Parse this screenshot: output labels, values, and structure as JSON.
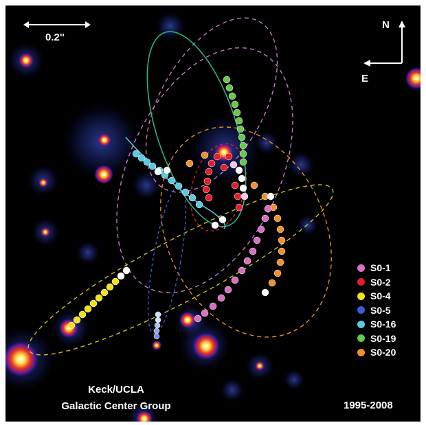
{
  "image": {
    "description_labels": {
      "scale_bar": "0.2''",
      "north": "N",
      "east": "E",
      "credit_line1": "Keck/UCLA",
      "credit_line2": "Galactic Center Group",
      "years": "1995-2008"
    }
  },
  "legend": [
    {
      "label": "S0-1",
      "color": "#d96fc3"
    },
    {
      "label": "S0-2",
      "color": "#e0202a"
    },
    {
      "label": "S0-4",
      "color": "#f2e21a"
    },
    {
      "label": "S0-5",
      "color": "#3f5bd9"
    },
    {
      "label": "S0-16",
      "color": "#5cc8e0"
    },
    {
      "label": "S0-19",
      "color": "#69c74a"
    },
    {
      "label": "S0-20",
      "color": "#f0902a"
    }
  ]
}
